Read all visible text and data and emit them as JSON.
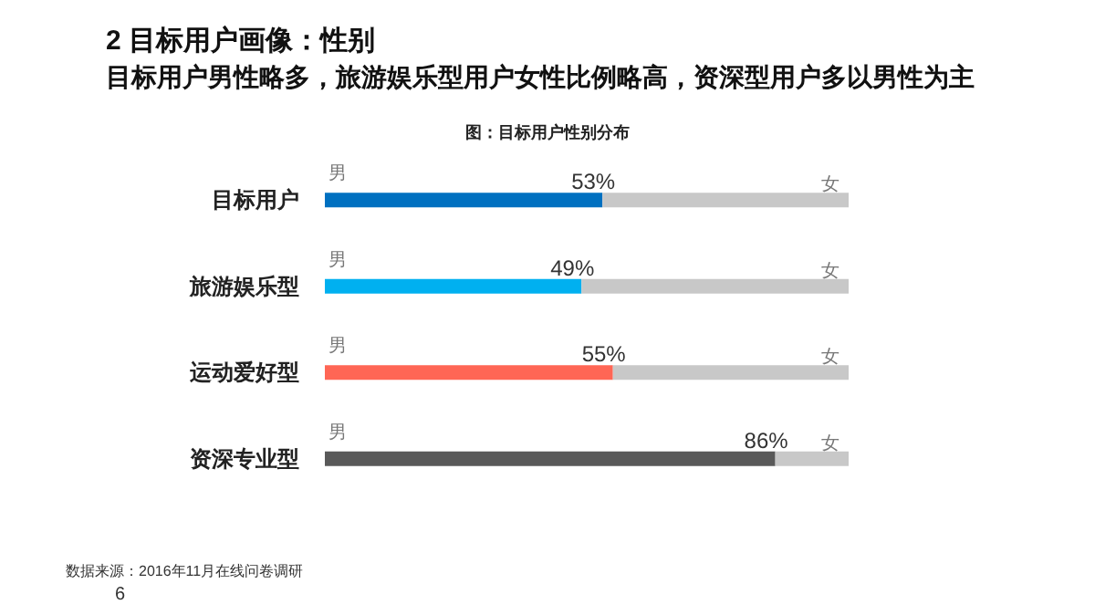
{
  "chart_data": {
    "type": "bar",
    "title": "2 目标用户画像：性别",
    "subtitle": "目标用户男性略多，旅游娱乐型用户女性比例略高，资深型用户多以男性为主",
    "annotations": [
      "图：目标用户性别分布",
      "数据来源：2016年11月在线问卷调研",
      "6"
    ],
    "orientation": "horizontal",
    "stacked": true,
    "categories": [
      "目标用户",
      "旅游娱乐型",
      "运动爱好型",
      "资深专业型"
    ],
    "series": [
      {
        "name": "男",
        "colors": [
          "#0070c0",
          "#00b0f0",
          "#ff6655",
          "#595959"
        ],
        "values": [
          53,
          49,
          55,
          86
        ],
        "value_labels": [
          "53%",
          "49%",
          "55%",
          "86%"
        ]
      },
      {
        "name": "女",
        "color": "#c8c8c8",
        "values": [
          47,
          51,
          45,
          14
        ]
      }
    ],
    "xlim": [
      0,
      100
    ],
    "grid": false,
    "legend": false
  }
}
